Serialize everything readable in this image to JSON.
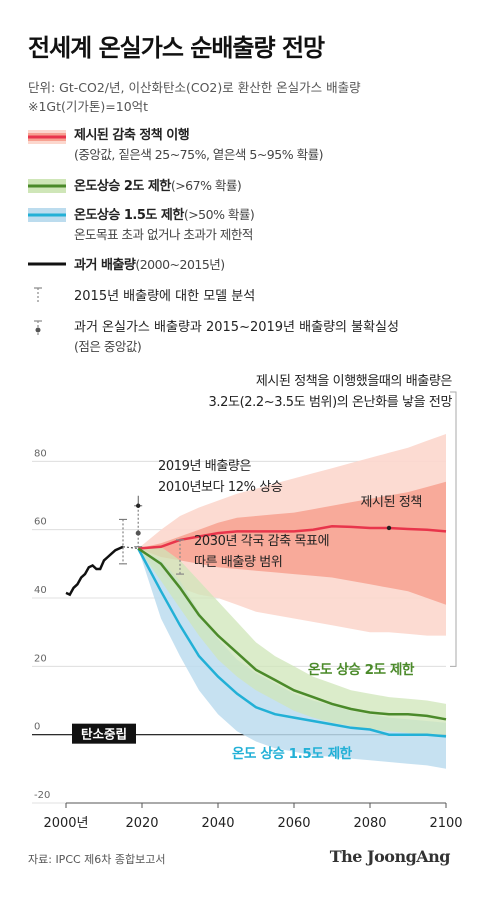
{
  "title": "전세계 온실가스 순배출량 전망",
  "subtitle": {
    "unit_line": "단위: Gt-CO2/년, 이산화탄소(CO2)로 환산한 온실가스 배출량",
    "note_line": "※1Gt(기가톤)=10억t"
  },
  "legend": {
    "policy": {
      "label": "제시된 감축 정책 이행",
      "note": "(중앙값, 짙은색 25~75%, 옅은색 5~95% 확률)"
    },
    "two": {
      "label": "온도상승 2도 제한",
      "note": "(>67% 확률)"
    },
    "onefive": {
      "label": "온도상승 1.5도 제한",
      "note": "(>50% 확률)",
      "note2": "온도목표 초과 없거나 초과가 제한적"
    },
    "past": {
      "label": "과거 배출량",
      "note": "(2000~2015년)"
    },
    "model": {
      "label": "2015년 배출량에 대한 모델 분석"
    },
    "uncert": {
      "label": "과거 온실가스 배출량과 2015~2019년 배출량의 불확실성",
      "note": "(점은 중앙값)"
    }
  },
  "annotations": {
    "top_line1": "제시된 정책을 이행했을때의 배출량은",
    "top_line2": "3.2도(2.2~3.5도 범위)의 온난화를 낳을 전망",
    "y2019_line1": "2019년 배출량은",
    "y2019_line2": "2010년보다 12% 상승",
    "policy_label": "제시된 정책",
    "ndc_line1": "2030년 각국 감축 목표에",
    "ndc_line2": "따른 배출량 범위",
    "two_label": "온도 상승 2도 제한",
    "onefive_label": "온도 상승 1.5도 제한",
    "netzero": "탄소중립"
  },
  "colors": {
    "policy": "#e8354b",
    "policy_dark_band": "#f7a191",
    "policy_light_band": "#fcd7cd",
    "two": "#4b8a2a",
    "two_band": "#cfe6b8",
    "onefive": "#22b0d6",
    "onefive_band": "#bcdcee",
    "past": "#111111"
  },
  "chart_data": {
    "type": "line",
    "title": "",
    "xlabel": "",
    "ylabel": "",
    "xlim": [
      2000,
      2100
    ],
    "ylim": [
      -20,
      88
    ],
    "x_ticks": [
      "2000년",
      "2020",
      "2040",
      "2060",
      "2080",
      "2100"
    ],
    "y_ticks": [
      "80",
      "60",
      "40",
      "20",
      "0",
      "-20"
    ],
    "grid": "horizontal",
    "series": [
      {
        "name": "과거 배출량",
        "x": [
          2000,
          2001,
          2002,
          2003,
          2004,
          2005,
          2006,
          2007,
          2008,
          2009,
          2010,
          2011,
          2012,
          2013,
          2014,
          2015
        ],
        "y": [
          41.5,
          41,
          43,
          44,
          46,
          47,
          49,
          49.5,
          48.5,
          48.5,
          51,
          52,
          53,
          54,
          54.5,
          55
        ]
      },
      {
        "name": "제시된 정책",
        "x": [
          2019,
          2025,
          2030,
          2035,
          2040,
          2045,
          2050,
          2055,
          2060,
          2065,
          2070,
          2075,
          2080,
          2085,
          2090,
          2095,
          2100
        ],
        "y": [
          54.5,
          55,
          57,
          58,
          59,
          59.5,
          59.5,
          59.5,
          59.5,
          60,
          61,
          60.8,
          60.5,
          60.5,
          60.2,
          60,
          59.5
        ],
        "dark_band_lo": [
          54.5,
          52,
          51,
          50,
          49,
          48.5,
          48,
          47.5,
          47,
          46.5,
          46,
          45,
          44,
          43,
          42,
          40,
          38
        ],
        "dark_band_hi": [
          54.5,
          56,
          58,
          60,
          62,
          63.5,
          64,
          64.5,
          65,
          66,
          67,
          68,
          69,
          70,
          71,
          72.5,
          74
        ],
        "light_band_lo": [
          54.5,
          47,
          43,
          41,
          40,
          38,
          36,
          35,
          34,
          33,
          32,
          31,
          30,
          30,
          29.5,
          29,
          29
        ],
        "light_band_hi": [
          54.5,
          60,
          64,
          66.5,
          68.5,
          70.5,
          72,
          73.5,
          75,
          76.5,
          78,
          79.5,
          81,
          82.5,
          84,
          86,
          88
        ]
      },
      {
        "name": "온도 상승 2도 제한",
        "x": [
          2019,
          2025,
          2030,
          2035,
          2040,
          2045,
          2050,
          2055,
          2060,
          2065,
          2070,
          2075,
          2080,
          2085,
          2090,
          2095,
          2100
        ],
        "y": [
          54.5,
          50,
          43,
          35,
          29,
          24,
          19,
          16,
          13,
          11,
          9,
          7.5,
          6.5,
          6,
          6,
          5.5,
          4.5
        ],
        "band_lo": [
          54.5,
          45,
          37,
          29,
          22,
          17,
          13,
          10,
          7,
          5,
          3.5,
          2.5,
          1.5,
          1,
          0.5,
          0,
          0
        ],
        "band_hi": [
          54.5,
          55,
          51,
          45,
          39,
          33,
          27,
          23,
          20,
          17,
          15,
          13,
          12,
          11,
          10.5,
          10,
          9
        ]
      },
      {
        "name": "온도 상승 1.5도 제한",
        "x": [
          2019,
          2025,
          2030,
          2035,
          2040,
          2045,
          2050,
          2055,
          2060,
          2065,
          2070,
          2075,
          2080,
          2085,
          2090,
          2095,
          2100
        ],
        "y": [
          54.5,
          42,
          32,
          23,
          17,
          12,
          8,
          6,
          5,
          4,
          3,
          2,
          1.5,
          0,
          0,
          0,
          -0.5
        ],
        "band_lo": [
          54.5,
          34,
          23,
          13,
          6,
          1,
          -2,
          -4,
          -5,
          -6,
          -6.5,
          -7,
          -7.5,
          -8,
          -8.5,
          -9,
          -10
        ],
        "band_hi": [
          54.5,
          51,
          45,
          36,
          28,
          22,
          18,
          15,
          12,
          10,
          8.5,
          7,
          6,
          5,
          4.5,
          4,
          3.5
        ]
      },
      {
        "name": "2015년 배출량에 대한 모델 분석",
        "x": [
          2015
        ],
        "y": [
          56.5
        ],
        "lo": [
          50
        ],
        "hi": [
          63
        ]
      },
      {
        "name": "과거 온실가스 배출량과 2015~2019년 배출량의 불확실성",
        "x": [
          2019
        ],
        "y": [
          59
        ],
        "lo": [
          55
        ],
        "hi": [
          67
        ]
      }
    ],
    "ndc_range_2030": [
      47,
      57
    ],
    "annotation_point_2019": 67
  }
}
